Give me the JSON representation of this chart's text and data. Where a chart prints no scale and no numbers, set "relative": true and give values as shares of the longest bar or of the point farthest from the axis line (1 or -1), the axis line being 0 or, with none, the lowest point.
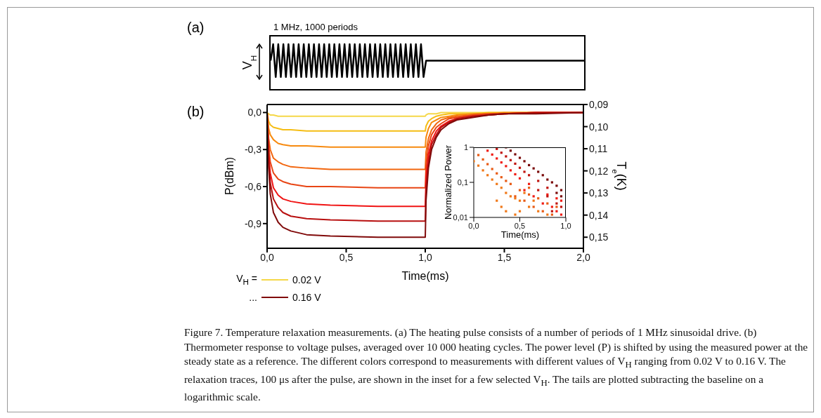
{
  "chart_data": [
    {
      "type": "line",
      "title": "(a)",
      "ylabel": "V$_{H}$",
      "annotations": [
        "1 MHz, 1000 periods"
      ],
      "relative": true,
      "color": "#000000",
      "categories": [
        null,
        null,
        null,
        null,
        null,
        null,
        null,
        null,
        null,
        null,
        null,
        null,
        null,
        null,
        null,
        null,
        null,
        null,
        null,
        null,
        null,
        null,
        null,
        null,
        null,
        null,
        null,
        null,
        null,
        null,
        null,
        null,
        null,
        null,
        null,
        null,
        null,
        null,
        null,
        null,
        null,
        null,
        null,
        null,
        null,
        null,
        null,
        null,
        null,
        null,
        null,
        null,
        null,
        null,
        null,
        null,
        null,
        null,
        null,
        null,
        null,
        null,
        null,
        null,
        null,
        null,
        null,
        null,
        null,
        null,
        null,
        null,
        null,
        null,
        null,
        null,
        null,
        null,
        null,
        null,
        null,
        null,
        null,
        null,
        null,
        null,
        null,
        null,
        null,
        null,
        null,
        null,
        null,
        null,
        null,
        null,
        null,
        null,
        null,
        null,
        null,
        null,
        null,
        null,
        null,
        null,
        null,
        null,
        null,
        null,
        null,
        null,
        null,
        null,
        null,
        null,
        null,
        null,
        null,
        null,
        null,
        null,
        null,
        null
      ],
      "values": [
        0.64,
        1,
        0.28,
        1,
        0.28,
        1,
        0.28,
        1,
        0.28,
        1,
        0.28,
        1,
        0.28,
        1,
        0.28,
        1,
        0.28,
        1,
        0.28,
        1,
        0.28,
        1,
        0.28,
        1,
        0.28,
        1,
        0.28,
        1,
        0.28,
        1,
        0.28,
        1,
        0.28,
        1,
        0.28,
        1,
        0.28,
        1,
        0.28,
        1,
        0.28,
        1,
        0.28,
        1,
        0.28,
        1,
        0.28,
        1,
        0.28,
        1,
        0.28,
        1,
        0.28,
        1,
        0.28,
        1,
        0.28,
        1,
        0.28,
        1,
        0.28,
        0.64,
        0.64,
        0.64,
        0.64,
        0.64,
        0.64,
        0.64,
        0.64,
        0.64,
        0.64,
        0.64,
        0.64,
        0.64,
        0.64,
        0.64,
        0.64,
        0.64,
        0.64,
        0.64,
        0.64,
        0.64,
        0.64,
        0.64,
        0.64,
        0.64,
        0.64,
        0.64,
        0.64,
        0.64,
        0.64,
        0.64,
        0.64,
        0.64,
        0.64,
        0.64,
        0.64,
        0.64,
        0.64,
        0.64,
        0.64,
        0.64,
        0.64,
        0.64,
        0.64,
        0.64,
        0.64,
        0.64,
        0.64,
        0.64,
        0.64,
        0.64,
        0.64,
        0.64,
        0.64,
        0.64,
        0.64,
        0.64,
        0.64,
        0.64,
        0.64,
        0.64,
        0.64,
        0.64
      ]
    },
    {
      "type": "line",
      "title": "(b)",
      "xlabel": "Time(ms)",
      "ylabel": "P(dBm)",
      "y2label": "T$_{e}$(K)",
      "legend_title": "V$_{H}$ =",
      "legend": "bottom left",
      "marker": "none",
      "line_style": "solid",
      "annotations": [
        "...",
        "Figure 7. Temperature relaxation measurements. (a) The heating pulse consists of a number of periods of 1 MHz sinusoidal drive. (b) Thermometer response to voltage pulses, averaged over 10 000 heating cycles. The power level (P) is shifted by using the measured power at the steady state as a reference. The different colors correspond to measurements with different values of V$_{H}$ ranging from 0.02 V to 0.16 V. The relaxation traces, 100 μs after the pulse, are shown in the inset for a few selected V$_{H}$. The tails are plotted subtracting the baseline on a logarithmic scale."
      ],
      "xlim": [
        0,
        2
      ],
      "xticks": [
        {
          "value": 0,
          "label": "0,0"
        },
        {
          "value": 0.5,
          "label": "0,5"
        },
        {
          "value": 1,
          "label": "1,0"
        },
        {
          "value": 1.5,
          "label": "1,5"
        },
        {
          "value": 2,
          "label": "2,0"
        }
      ],
      "ylim": [
        -1.1,
        0.065
      ],
      "yticks": [
        {
          "value": 0,
          "label": "0,0"
        },
        {
          "value": -0.3,
          "label": "-0,3"
        },
        {
          "value": -0.6,
          "label": "-0,6"
        },
        {
          "value": -0.9,
          "label": "-0,9"
        }
      ],
      "y2lim": [
        0.155,
        0.09
      ],
      "y2ticks": [
        {
          "value": 0.09,
          "label": "0,09"
        },
        {
          "value": 0.1,
          "label": "0,10"
        },
        {
          "value": 0.11,
          "label": "0,11"
        },
        {
          "value": 0.12,
          "label": "0,12"
        },
        {
          "value": 0.13,
          "label": "0,13"
        },
        {
          "value": 0.14,
          "label": "0,14"
        },
        {
          "value": 0.15,
          "label": "0,15"
        }
      ],
      "series": [
        {
          "name": "0.02 V",
          "color": "#f5d848",
          "x": [
            0,
            0.01,
            0.02,
            0.04,
            0.07,
            0.1,
            0.15,
            0.25,
            0.4,
            0.7,
            1,
            1.005,
            1.02,
            1.04,
            1.07,
            1.1,
            1.15,
            1.2,
            1.3,
            1.4,
            1.5,
            1.7,
            2
          ],
          "values": [
            0,
            -0.01,
            -0.02,
            -0.02,
            -0.03,
            -0.03,
            -0.03,
            -0.03,
            -0.03,
            -0.03,
            -0.03,
            -0.02,
            -0.01,
            -0.01,
            -0.01,
            0,
            0,
            0,
            0,
            0,
            0,
            0,
            0
          ]
        },
        {
          "color": "#f5bd14",
          "x": [
            0,
            0.01,
            0.02,
            0.04,
            0.07,
            0.1,
            0.15,
            0.25,
            0.4,
            0.7,
            1,
            1.005,
            1.02,
            1.04,
            1.07,
            1.1,
            1.15,
            1.2,
            1.3,
            1.4,
            1.5,
            1.7,
            2
          ],
          "values": [
            0,
            -0.07,
            -0.1,
            -0.12,
            -0.13,
            -0.14,
            -0.14,
            -0.15,
            -0.15,
            -0.15,
            -0.15,
            -0.11,
            -0.07,
            -0.05,
            -0.03,
            -0.02,
            -0.01,
            -0.01,
            -0.01,
            0,
            0,
            0,
            0
          ]
        },
        {
          "color": "#f78a0f",
          "x": [
            0,
            0.01,
            0.02,
            0.04,
            0.07,
            0.1,
            0.15,
            0.25,
            0.4,
            0.7,
            1,
            1.005,
            1.02,
            1.04,
            1.07,
            1.1,
            1.15,
            1.2,
            1.3,
            1.4,
            1.5,
            1.7,
            2
          ],
          "values": [
            0,
            -0.13,
            -0.18,
            -0.22,
            -0.25,
            -0.26,
            -0.27,
            -0.27,
            -0.28,
            -0.28,
            -0.28,
            -0.2,
            -0.13,
            -0.08,
            -0.06,
            -0.04,
            -0.03,
            -0.02,
            -0.01,
            -0.01,
            0,
            0,
            0
          ]
        },
        {
          "color": "#f2660f",
          "x": [
            0,
            0.01,
            0.02,
            0.04,
            0.07,
            0.1,
            0.15,
            0.25,
            0.4,
            0.7,
            1,
            1.005,
            1.02,
            1.04,
            1.07,
            1.1,
            1.15,
            1.2,
            1.3,
            1.4,
            1.5,
            1.7,
            2
          ],
          "values": [
            0,
            -0.21,
            -0.3,
            -0.37,
            -0.4,
            -0.42,
            -0.44,
            -0.45,
            -0.46,
            -0.46,
            -0.46,
            -0.32,
            -0.21,
            -0.14,
            -0.09,
            -0.06,
            -0.04,
            -0.03,
            -0.02,
            -0.01,
            -0.01,
            0,
            0
          ]
        },
        {
          "color": "#e84514",
          "x": [
            0,
            0.01,
            0.02,
            0.04,
            0.07,
            0.1,
            0.15,
            0.25,
            0.4,
            0.7,
            1,
            1.005,
            1.02,
            1.04,
            1.07,
            1.1,
            1.15,
            1.2,
            1.3,
            1.4,
            1.5,
            1.7,
            2
          ],
          "values": [
            0,
            -0.27,
            -0.4,
            -0.49,
            -0.54,
            -0.56,
            -0.58,
            -0.6,
            -0.6,
            -0.61,
            -0.61,
            -0.43,
            -0.27,
            -0.18,
            -0.12,
            -0.09,
            -0.05,
            -0.04,
            -0.02,
            -0.01,
            -0.01,
            0,
            0
          ]
        },
        {
          "color": "#f01414",
          "x": [
            0,
            0.01,
            0.02,
            0.04,
            0.07,
            0.1,
            0.15,
            0.25,
            0.4,
            0.7,
            1,
            1.005,
            1.02,
            1.04,
            1.07,
            1.1,
            1.15,
            1.2,
            1.3,
            1.4,
            1.5,
            1.7,
            2
          ],
          "values": [
            0,
            -0.34,
            -0.49,
            -0.61,
            -0.67,
            -0.7,
            -0.72,
            -0.74,
            -0.75,
            -0.76,
            -0.76,
            -0.53,
            -0.34,
            -0.23,
            -0.15,
            -0.11,
            -0.07,
            -0.05,
            -0.03,
            -0.02,
            -0.01,
            0,
            0
          ]
        },
        {
          "color": "#b80f0f",
          "x": [
            0,
            0.01,
            0.02,
            0.04,
            0.07,
            0.1,
            0.15,
            0.25,
            0.4,
            0.7,
            1,
            1.005,
            1.02,
            1.04,
            1.07,
            1.1,
            1.15,
            1.2,
            1.3,
            1.4,
            1.5,
            1.7,
            2
          ],
          "values": [
            0,
            -0.4,
            -0.57,
            -0.7,
            -0.77,
            -0.81,
            -0.84,
            -0.86,
            -0.87,
            -0.88,
            -0.88,
            -0.62,
            -0.4,
            -0.26,
            -0.18,
            -0.12,
            -0.08,
            -0.05,
            -0.03,
            -0.02,
            -0.01,
            0,
            0
          ]
        },
        {
          "name": "0.16 V",
          "color": "#800a0a",
          "x": [
            0,
            0.01,
            0.02,
            0.04,
            0.07,
            0.1,
            0.15,
            0.25,
            0.4,
            0.7,
            1,
            1.005,
            1.02,
            1.04,
            1.07,
            1.1,
            1.15,
            1.2,
            1.3,
            1.4,
            1.5,
            1.7,
            2
          ],
          "values": [
            0,
            -0.45,
            -0.66,
            -0.81,
            -0.89,
            -0.93,
            -0.96,
            -0.99,
            -1,
            -1.01,
            -1.01,
            -0.71,
            -0.45,
            -0.3,
            -0.2,
            -0.14,
            -0.09,
            -0.06,
            -0.04,
            -0.02,
            -0.01,
            -0.01,
            0
          ]
        }
      ]
    },
    {
      "type": "scatter",
      "xlabel": "Time(ms)",
      "ylabel": "Normalized Power",
      "log": "y",
      "marker": "square",
      "xlim": [
        0,
        1
      ],
      "xticks": [
        {
          "value": 0,
          "label": "0,0"
        },
        {
          "value": 0.5,
          "label": "0,5"
        },
        {
          "value": 1,
          "label": "1,0"
        }
      ],
      "ylim": [
        0.01,
        1
      ],
      "yticks": [
        {
          "value": 0.01,
          "label": "0,01"
        },
        {
          "value": 0.1,
          "label": "0,1"
        },
        1
      ],
      "series": [
        {
          "color": "#f07818",
          "x": [
            0,
            0.05,
            0.1,
            0.15,
            0.2,
            0.25,
            0.3,
            0.35,
            0.4,
            0.45,
            0.5,
            0.6,
            0.7,
            0.8,
            0.3,
            0.35,
            0.45,
            0.55,
            0.65,
            0.25,
            0.5
          ],
          "values": [
            0.4,
            0.3,
            0.22,
            0.16,
            0.12,
            0.09,
            0.07,
            0.05,
            0.04,
            0.035,
            0.03,
            0.02,
            0.015,
            0.012,
            0.02,
            0.015,
            0.012,
            0.05,
            0.03,
            0.03,
            0.015
          ]
        },
        {
          "color": "#e85a14",
          "x": [
            0.05,
            0.1,
            0.15,
            0.2,
            0.25,
            0.3,
            0.35,
            0.4,
            0.5,
            0.6,
            0.7,
            0.8,
            0.9,
            0.45,
            0.55,
            0.65,
            0.75,
            0.85,
            0.6
          ],
          "values": [
            0.6,
            0.45,
            0.33,
            0.24,
            0.18,
            0.14,
            0.11,
            0.09,
            0.06,
            0.045,
            0.035,
            0.025,
            0.02,
            0.04,
            0.03,
            0.02,
            0.015,
            0.012,
            0.07
          ]
        },
        {
          "color": "#f01c14",
          "x": [
            0.15,
            0.2,
            0.25,
            0.3,
            0.35,
            0.4,
            0.45,
            0.5,
            0.6,
            0.8,
            0.9,
            0.95,
            0.55,
            0.65,
            0.75,
            0.85,
            0.9,
            0.95
          ],
          "values": [
            0.8,
            0.62,
            0.48,
            0.37,
            0.29,
            0.22,
            0.17,
            0.13,
            0.09,
            0.045,
            0.035,
            0.03,
            0.06,
            0.04,
            0.025,
            0.02,
            0.015,
            0.012
          ]
        },
        {
          "color": "#c0140f",
          "x": [
            0.25,
            0.3,
            0.35,
            0.4,
            0.45,
            0.5,
            0.55,
            0.6,
            0.7,
            0.8,
            0.7,
            0.8,
            0.9,
            0.95,
            0.85
          ],
          "values": [
            0.9,
            0.7,
            0.55,
            0.43,
            0.34,
            0.26,
            0.2,
            0.16,
            0.11,
            0.07,
            0.06,
            0.04,
            0.025,
            0.02,
            0.015
          ]
        },
        {
          "color": "#7a0a0a",
          "x": [
            0.35,
            0.4,
            0.45,
            0.5,
            0.55,
            0.6,
            0.65,
            0.7,
            0.75,
            0.8,
            0.85,
            0.9,
            0.95,
            0.9,
            0.95
          ],
          "values": [
            1,
            0.8,
            0.63,
            0.5,
            0.4,
            0.31,
            0.25,
            0.2,
            0.16,
            0.12,
            0.1,
            0.08,
            0.06,
            0.05,
            0.04
          ]
        }
      ]
    }
  ]
}
